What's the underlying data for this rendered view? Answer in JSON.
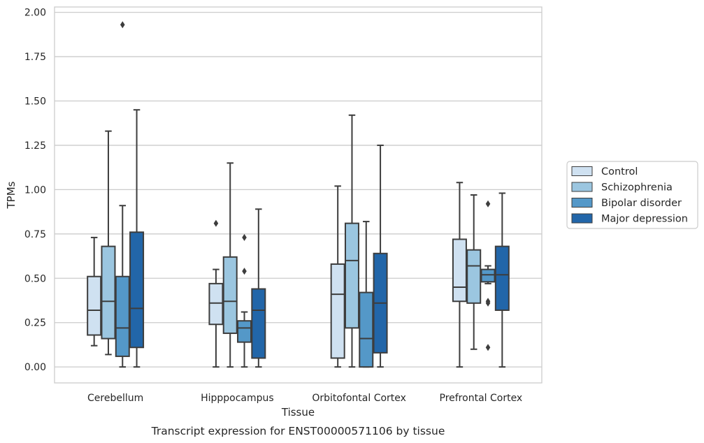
{
  "chart_data": {
    "type": "boxplot",
    "xlabel": "Tissue",
    "ylabel": "TPMs",
    "caption": "Transcript expression for ENST00000571106 by tissue",
    "ylim": [
      -0.09,
      2.03
    ],
    "yticks": [
      "0.00",
      "0.25",
      "0.50",
      "0.75",
      "1.00",
      "1.25",
      "1.50",
      "1.75",
      "2.00"
    ],
    "grid": true,
    "legend_position": "right",
    "categories": [
      "Cerebellum",
      "Hipppocampus",
      "Orbitofontal Cortex",
      "Prefrontal Cortex"
    ],
    "series": [
      {
        "name": "Control",
        "color": "#cfe1f1",
        "boxes": [
          {
            "whislo": 0.12,
            "q1": 0.18,
            "med": 0.32,
            "q3": 0.51,
            "whishi": 0.73,
            "fliers": []
          },
          {
            "whislo": 0.0,
            "q1": 0.24,
            "med": 0.36,
            "q3": 0.47,
            "whishi": 0.55,
            "fliers": [
              0.81
            ]
          },
          {
            "whislo": 0.0,
            "q1": 0.05,
            "med": 0.41,
            "q3": 0.58,
            "whishi": 1.02,
            "fliers": []
          },
          {
            "whislo": 0.0,
            "q1": 0.37,
            "med": 0.45,
            "q3": 0.72,
            "whishi": 1.04,
            "fliers": []
          }
        ]
      },
      {
        "name": "Schizophrenia",
        "color": "#9bc6e0",
        "boxes": [
          {
            "whislo": 0.07,
            "q1": 0.16,
            "med": 0.37,
            "q3": 0.68,
            "whishi": 1.33,
            "fliers": []
          },
          {
            "whislo": 0.0,
            "q1": 0.19,
            "med": 0.37,
            "q3": 0.62,
            "whishi": 1.15,
            "fliers": []
          },
          {
            "whislo": 0.0,
            "q1": 0.22,
            "med": 0.6,
            "q3": 0.81,
            "whishi": 1.42,
            "fliers": []
          },
          {
            "whislo": 0.1,
            "q1": 0.36,
            "med": 0.57,
            "q3": 0.66,
            "whishi": 0.97,
            "fliers": []
          }
        ]
      },
      {
        "name": "Bipolar disorder",
        "color": "#5498c8",
        "boxes": [
          {
            "whislo": 0.0,
            "q1": 0.06,
            "med": 0.22,
            "q3": 0.51,
            "whishi": 0.91,
            "fliers": [
              1.93
            ]
          },
          {
            "whislo": 0.0,
            "q1": 0.14,
            "med": 0.22,
            "q3": 0.26,
            "whishi": 0.31,
            "fliers": [
              0.54,
              0.73
            ]
          },
          {
            "whislo": 0.0,
            "q1": 0.0,
            "med": 0.16,
            "q3": 0.42,
            "whishi": 0.82,
            "fliers": []
          },
          {
            "whislo": 0.47,
            "q1": 0.48,
            "med": 0.52,
            "q3": 0.55,
            "whishi": 0.57,
            "fliers": [
              0.11,
              0.36,
              0.37,
              0.92
            ]
          }
        ]
      },
      {
        "name": "Major depression",
        "color": "#2266a9",
        "boxes": [
          {
            "whislo": 0.0,
            "q1": 0.11,
            "med": 0.33,
            "q3": 0.76,
            "whishi": 1.45,
            "fliers": []
          },
          {
            "whislo": 0.0,
            "q1": 0.05,
            "med": 0.32,
            "q3": 0.44,
            "whishi": 0.89,
            "fliers": []
          },
          {
            "whislo": 0.0,
            "q1": 0.08,
            "med": 0.36,
            "q3": 0.64,
            "whishi": 1.25,
            "fliers": []
          },
          {
            "whislo": 0.0,
            "q1": 0.32,
            "med": 0.52,
            "q3": 0.68,
            "whishi": 0.98,
            "fliers": []
          }
        ]
      }
    ]
  }
}
